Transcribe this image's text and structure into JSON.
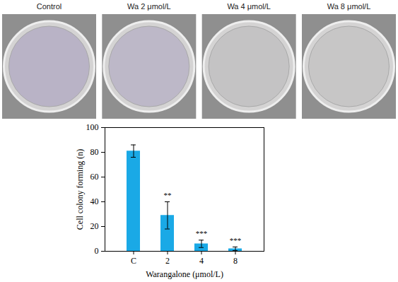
{
  "image_panels": {
    "labels": [
      "Control",
      "Wa 2 μmol/L",
      "Wa 4 μmol/L",
      "Wa 8 μmol/L"
    ]
  },
  "chart_data": {
    "type": "bar",
    "categories": [
      "C",
      "2",
      "4",
      "8"
    ],
    "values": [
      81,
      29,
      6,
      2
    ],
    "errors": [
      5,
      11,
      3,
      1.5
    ],
    "significance": [
      null,
      "**",
      "***",
      "***"
    ],
    "color": "#1aa9e6",
    "x_label": "Warangalone (μmol/L)",
    "y_label": "Cell colony forming (n)",
    "ylim": [
      0,
      100
    ],
    "yticks": [
      0,
      20,
      40,
      60,
      80,
      100
    ],
    "grid": false
  }
}
